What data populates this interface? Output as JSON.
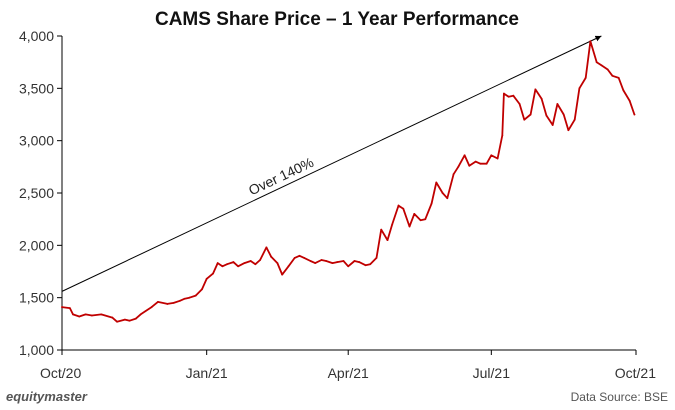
{
  "chart_data": {
    "type": "line",
    "title": "CAMS Share Price – 1 Year Performance",
    "xlabel": "",
    "ylabel": "",
    "ylim": [
      1000,
      4000
    ],
    "yticks": [
      1000,
      1500,
      2000,
      2500,
      3000,
      3500,
      4000
    ],
    "ytick_labels": [
      "1,000",
      "1,500",
      "2,000",
      "2,500",
      "3,000",
      "3,500",
      "4,000"
    ],
    "xlim": [
      "2020-10-01",
      "2021-10-01"
    ],
    "xticks": [
      "2020-10-01",
      "2021-01-01",
      "2021-04-01",
      "2021-07-01",
      "2021-10-01"
    ],
    "xtick_labels": [
      "Oct/20",
      "Jan/21",
      "Apr/21",
      "Jul/21",
      "Oct/21"
    ],
    "grid": false,
    "line_color": "#c00000",
    "series": [
      {
        "x": [
          "2020-10-01",
          "2020-10-06",
          "2020-10-08",
          "2020-10-12",
          "2020-10-16",
          "2020-10-20",
          "2020-10-26",
          "2020-11-02",
          "2020-11-05",
          "2020-11-10",
          "2020-11-13",
          "2020-11-17",
          "2020-11-20",
          "2020-11-23",
          "2020-11-27",
          "2020-12-01",
          "2020-12-07",
          "2020-12-11",
          "2020-12-15",
          "2020-12-18",
          "2020-12-21",
          "2020-12-25",
          "2020-12-29",
          "2021-01-01",
          "2021-01-05",
          "2021-01-08",
          "2021-01-11",
          "2021-01-14",
          "2021-01-18",
          "2021-01-21",
          "2021-01-25",
          "2021-01-29",
          "2021-02-01",
          "2021-02-04",
          "2021-02-08",
          "2021-02-11",
          "2021-02-15",
          "2021-02-18",
          "2021-02-22",
          "2021-02-26",
          "2021-03-01",
          "2021-03-04",
          "2021-03-08",
          "2021-03-11",
          "2021-03-15",
          "2021-03-18",
          "2021-03-22",
          "2021-03-25",
          "2021-03-29",
          "2021-04-01",
          "2021-04-05",
          "2021-04-08",
          "2021-04-12",
          "2021-04-15",
          "2021-04-19",
          "2021-04-22",
          "2021-04-26",
          "2021-04-29",
          "2021-05-03",
          "2021-05-06",
          "2021-05-10",
          "2021-05-13",
          "2021-05-17",
          "2021-05-20",
          "2021-05-24",
          "2021-05-27",
          "2021-05-31",
          "2021-06-03",
          "2021-06-07",
          "2021-06-10",
          "2021-06-14",
          "2021-06-17",
          "2021-06-21",
          "2021-06-24",
          "2021-06-28",
          "2021-07-01",
          "2021-07-05",
          "2021-07-08",
          "2021-07-09",
          "2021-07-12",
          "2021-07-15",
          "2021-07-19",
          "2021-07-22",
          "2021-07-26",
          "2021-07-29",
          "2021-08-02",
          "2021-08-05",
          "2021-08-09",
          "2021-08-12",
          "2021-08-16",
          "2021-08-19",
          "2021-08-23",
          "2021-08-26",
          "2021-08-30",
          "2021-09-02",
          "2021-09-06",
          "2021-09-09",
          "2021-09-13",
          "2021-09-16",
          "2021-09-20",
          "2021-09-23",
          "2021-09-27",
          "2021-09-30"
        ],
        "values": [
          1410,
          1400,
          1340,
          1320,
          1340,
          1330,
          1340,
          1310,
          1270,
          1290,
          1280,
          1300,
          1340,
          1370,
          1410,
          1460,
          1440,
          1450,
          1470,
          1490,
          1500,
          1520,
          1580,
          1680,
          1730,
          1830,
          1800,
          1820,
          1840,
          1800,
          1830,
          1850,
          1820,
          1860,
          1980,
          1890,
          1830,
          1720,
          1800,
          1880,
          1900,
          1880,
          1850,
          1830,
          1860,
          1850,
          1830,
          1840,
          1850,
          1800,
          1850,
          1840,
          1810,
          1820,
          1880,
          2150,
          2050,
          2200,
          2380,
          2350,
          2180,
          2300,
          2240,
          2250,
          2400,
          2600,
          2500,
          2450,
          2680,
          2750,
          2860,
          2760,
          2800,
          2780,
          2780,
          2860,
          2830,
          3050,
          3450,
          3420,
          3430,
          3350,
          3200,
          3250,
          3490,
          3400,
          3240,
          3150,
          3350,
          3250,
          3100,
          3200,
          3500,
          3600,
          3950,
          3750,
          3720,
          3680,
          3620,
          3600,
          3480,
          3380,
          3250
        ]
      }
    ],
    "annotations": [
      {
        "text": "Over 140%",
        "from": [
          "2020-10-01",
          1560
        ],
        "to": [
          "2021-09-09",
          4000
        ]
      }
    ],
    "branding": "equitymaster",
    "source": "Data Source: BSE"
  }
}
